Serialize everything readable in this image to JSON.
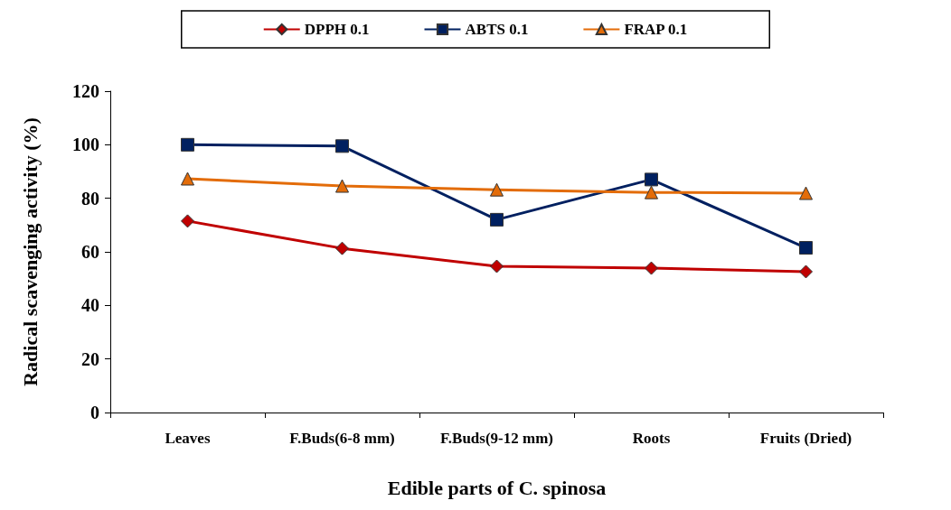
{
  "chart_data": {
    "type": "line",
    "xlabel": "Edible parts of C. spinosa",
    "ylabel": "Radical scavenging activity (%)",
    "categories": [
      "Leaves",
      "F.Buds(6-8 mm)",
      "F.Buds(9-12 mm)",
      "Roots",
      "Fruits (Dried)"
    ],
    "series": [
      {
        "name": "DPPH 0.1",
        "color": "#c00000",
        "marker": "diamond",
        "values": [
          71.5,
          61.3,
          54.6,
          53.9,
          52.6
        ]
      },
      {
        "name": "ABTS 0.1",
        "color": "#002060",
        "marker": "square",
        "values": [
          100,
          99.5,
          72,
          87,
          61.5
        ]
      },
      {
        "name": "FRAP 0.1",
        "color": "#e36c09",
        "marker": "triangle",
        "values": [
          87.3,
          84.6,
          83.2,
          82.2,
          81.9
        ]
      }
    ],
    "ylim": [
      0,
      120
    ],
    "yticks": [
      0,
      20,
      40,
      60,
      80,
      100,
      120
    ],
    "grid": false,
    "legend": "top",
    "line_style": "solid"
  }
}
